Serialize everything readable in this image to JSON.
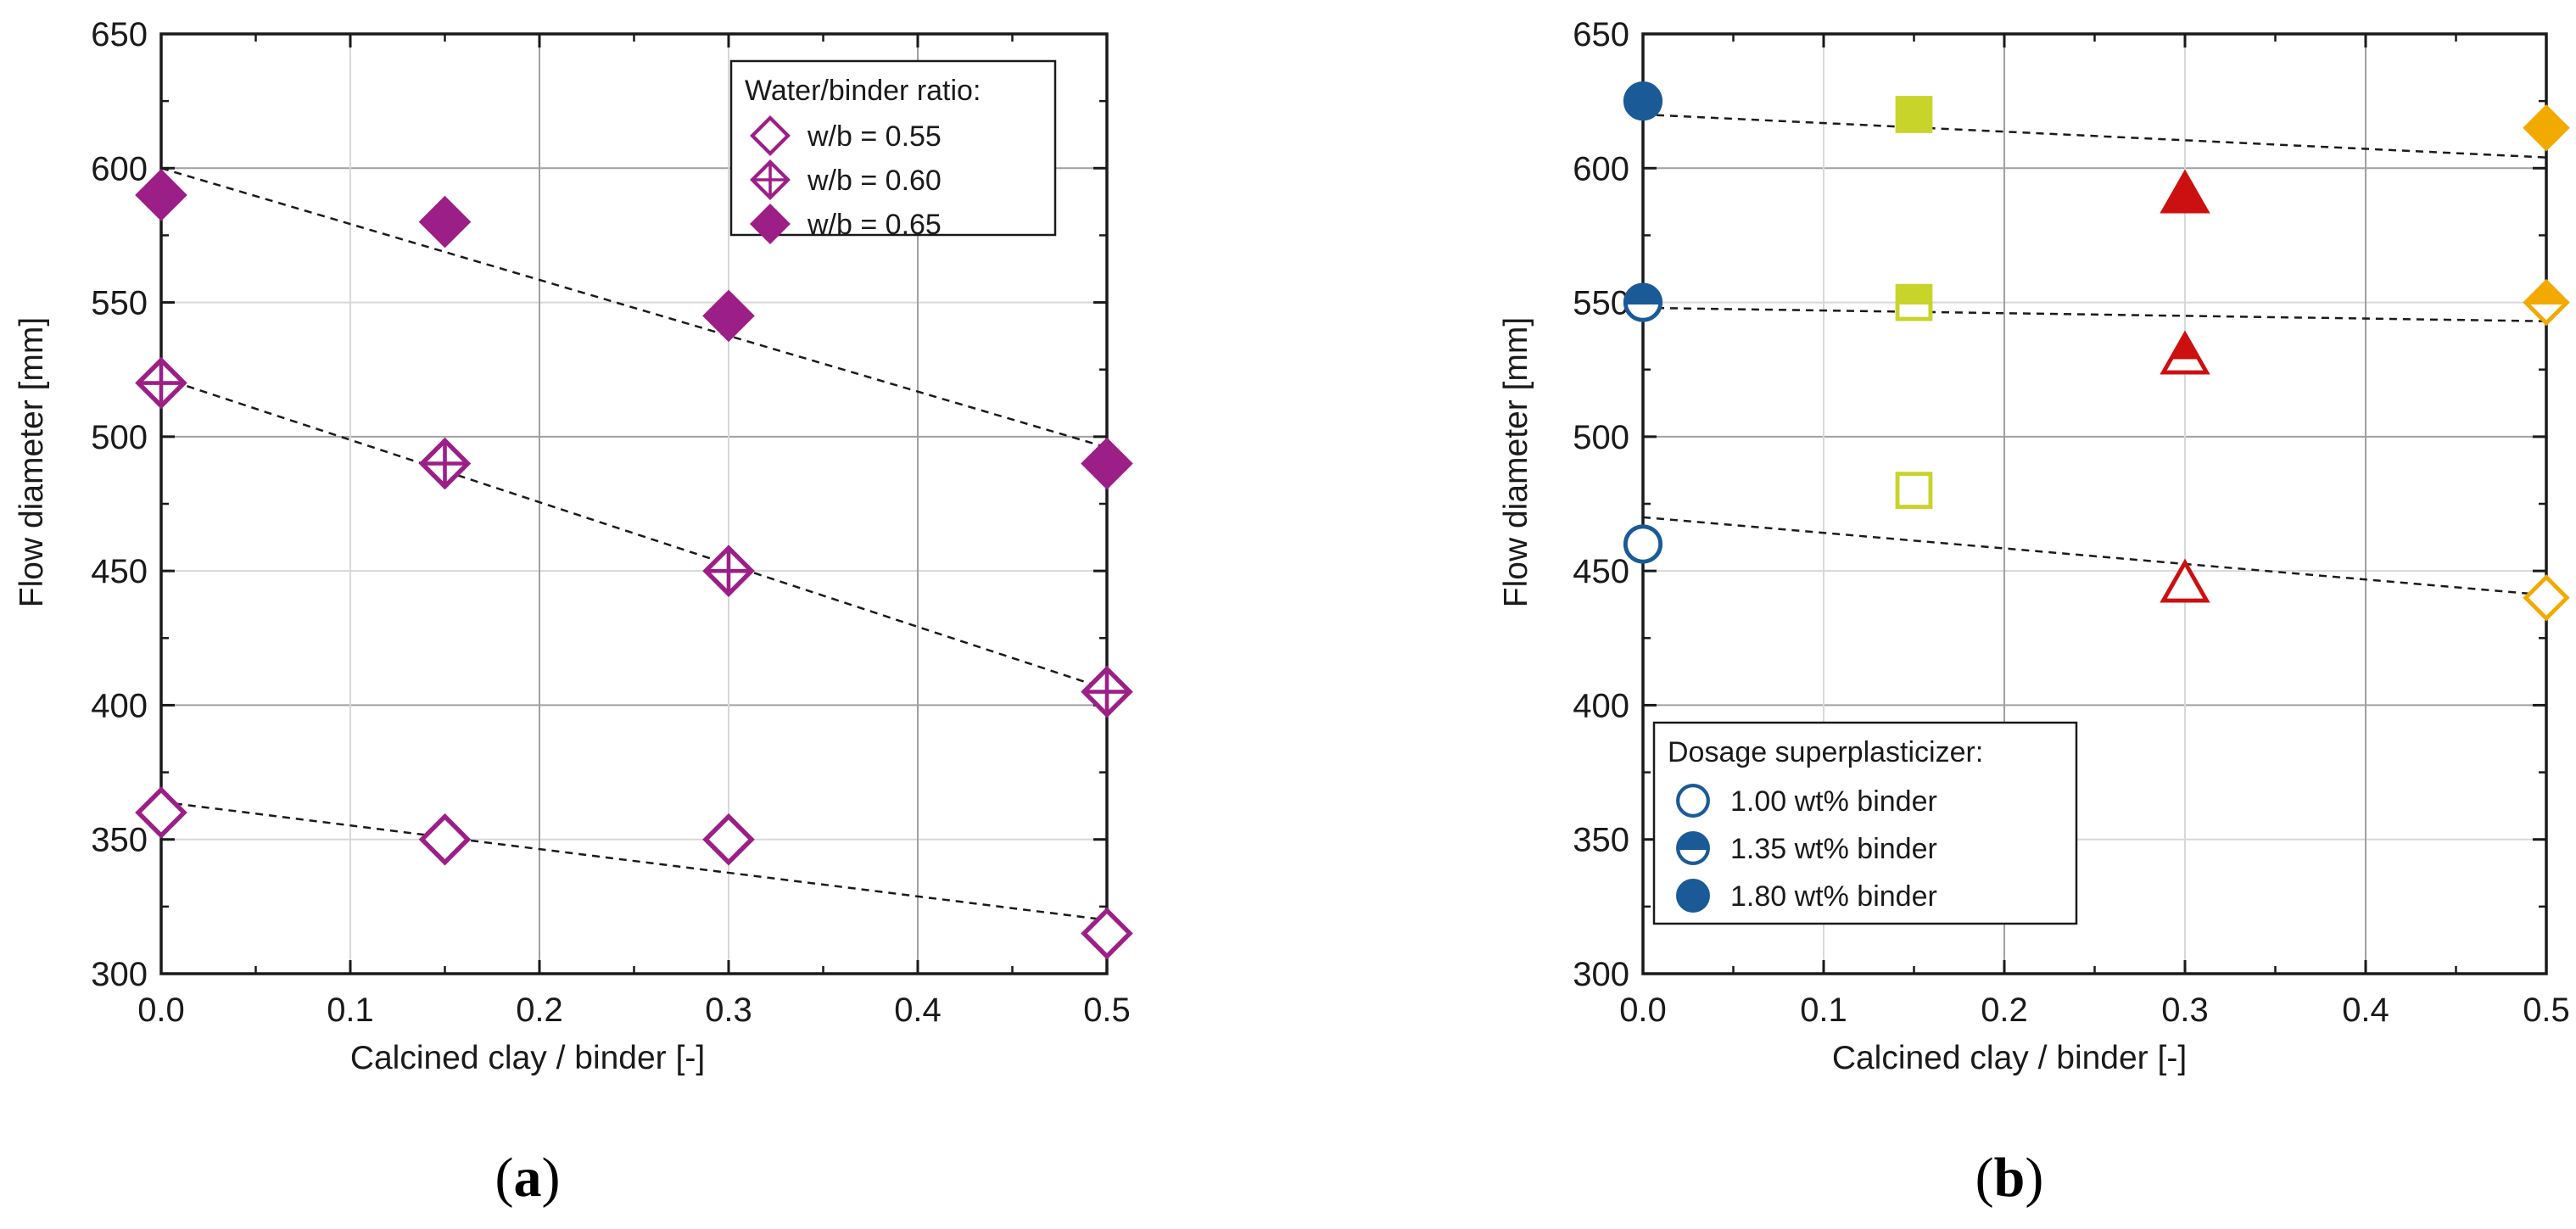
{
  "figure": {
    "panel_labels": [
      {
        "open": "(",
        "letter": "a",
        "close": ")"
      },
      {
        "open": "(",
        "letter": "b",
        "close": ")"
      }
    ]
  },
  "chart_data": [
    {
      "type": "scatter",
      "panel": "a",
      "title": "",
      "xlabel": "Calcined clay / binder [-]",
      "ylabel": "Flow diameter [mm]",
      "xlim": [
        0.0,
        0.5
      ],
      "ylim": [
        300,
        650
      ],
      "xticks": [
        0.0,
        0.1,
        0.2,
        0.3,
        0.4,
        0.5
      ],
      "xtick_labels": [
        "0.0",
        "0.1",
        "0.2",
        "0.3",
        "0.4",
        "0.5"
      ],
      "yticks": [
        300,
        350,
        400,
        450,
        500,
        550,
        600,
        650
      ],
      "ytick_labels": [
        "300",
        "350",
        "400",
        "450",
        "500",
        "550",
        "600",
        "650"
      ],
      "grid": true,
      "legend": {
        "title": "Water/binder ratio:",
        "placement": "top-right",
        "entries": [
          {
            "label": "w/b = 0.55",
            "marker": "diamond-open",
            "color": "#9c1f87"
          },
          {
            "label": "w/b = 0.60",
            "marker": "diamond-cross",
            "color": "#9c1f87"
          },
          {
            "label": "w/b = 0.65",
            "marker": "diamond-filled",
            "color": "#9c1f87"
          }
        ]
      },
      "series": [
        {
          "name": "w/b = 0.55",
          "marker": "diamond-open",
          "color": "#9c1f87",
          "x": [
            0.0,
            0.15,
            0.3,
            0.5
          ],
          "y": [
            360,
            350,
            350,
            315
          ],
          "trend": {
            "x": [
              0.0,
              0.5
            ],
            "y": [
              364,
              320
            ]
          }
        },
        {
          "name": "w/b = 0.60",
          "marker": "diamond-cross",
          "color": "#9c1f87",
          "x": [
            0.0,
            0.15,
            0.3,
            0.5
          ],
          "y": [
            520,
            490,
            450,
            405
          ],
          "trend": {
            "x": [
              0.0,
              0.5
            ],
            "y": [
              522,
              406
            ]
          }
        },
        {
          "name": "w/b = 0.65",
          "marker": "diamond-filled",
          "color": "#9c1f87",
          "x": [
            0.0,
            0.15,
            0.3,
            0.5
          ],
          "y": [
            590,
            580,
            545,
            490
          ],
          "trend": {
            "x": [
              0.0,
              0.5
            ],
            "y": [
              600,
              496
            ]
          }
        }
      ]
    },
    {
      "type": "scatter",
      "panel": "b",
      "title": "",
      "xlabel": "Calcined clay / binder [-]",
      "ylabel": "Flow diameter [mm]",
      "xlim": [
        0.0,
        0.5
      ],
      "ylim": [
        300,
        650
      ],
      "xticks": [
        0.0,
        0.1,
        0.2,
        0.3,
        0.4,
        0.5
      ],
      "xtick_labels": [
        "0.0",
        "0.1",
        "0.2",
        "0.3",
        "0.4",
        "0.5"
      ],
      "yticks": [
        300,
        350,
        400,
        450,
        500,
        550,
        600,
        650
      ],
      "ytick_labels": [
        "300",
        "350",
        "400",
        "450",
        "500",
        "550",
        "600",
        "650"
      ],
      "grid": true,
      "legend": {
        "title": "Dosage superplasticizer:",
        "placement": "bottom-left",
        "entries": [
          {
            "label": "1.00 wt% binder",
            "fill": "open",
            "color": "#1a5a96"
          },
          {
            "label": "1.35 wt% binder",
            "fill": "half",
            "color": "#1a5a96"
          },
          {
            "label": "1.80 wt% binder",
            "fill": "filled",
            "color": "#1a5a96"
          }
        ]
      },
      "series": [
        {
          "name": "1.00 wt% binder",
          "fill": "open",
          "points": [
            {
              "x": 0.0,
              "y": 460,
              "marker": "circle",
              "color": "#1a5a96"
            },
            {
              "x": 0.15,
              "y": 480,
              "marker": "square",
              "color": "#c8d42a"
            },
            {
              "x": 0.3,
              "y": 445,
              "marker": "triangle",
              "color": "#cc1010"
            },
            {
              "x": 0.5,
              "y": 440,
              "marker": "diamond",
              "color": "#f2a900"
            }
          ],
          "trend": {
            "x": [
              0.0,
              0.5
            ],
            "y": [
              470,
              441
            ]
          }
        },
        {
          "name": "1.35 wt% binder",
          "fill": "half",
          "points": [
            {
              "x": 0.0,
              "y": 550,
              "marker": "circle",
              "color": "#1a5a96"
            },
            {
              "x": 0.15,
              "y": 550,
              "marker": "square",
              "color": "#c8d42a"
            },
            {
              "x": 0.3,
              "y": 530,
              "marker": "triangle",
              "color": "#cc1010"
            },
            {
              "x": 0.5,
              "y": 550,
              "marker": "diamond",
              "color": "#f2a900"
            }
          ],
          "trend": {
            "x": [
              0.0,
              0.5
            ],
            "y": [
              548,
              543
            ]
          }
        },
        {
          "name": "1.80 wt% binder",
          "fill": "filled",
          "points": [
            {
              "x": 0.0,
              "y": 625,
              "marker": "circle",
              "color": "#1a5a96"
            },
            {
              "x": 0.15,
              "y": 620,
              "marker": "square",
              "color": "#c8d42a"
            },
            {
              "x": 0.3,
              "y": 590,
              "marker": "triangle",
              "color": "#cc1010"
            },
            {
              "x": 0.5,
              "y": 615,
              "marker": "diamond",
              "color": "#f2a900"
            }
          ],
          "trend": {
            "x": [
              0.0,
              0.5
            ],
            "y": [
              620,
              604
            ]
          }
        }
      ]
    }
  ]
}
